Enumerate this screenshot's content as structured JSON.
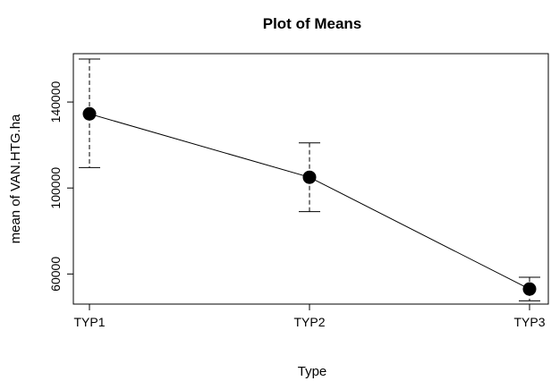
{
  "chart_data": {
    "type": "line",
    "title": "Plot of Means",
    "xlabel": "Type",
    "ylabel": "mean of VAN.HTG.ha",
    "categories": [
      "TYP1",
      "TYP2",
      "TYP3"
    ],
    "series": [
      {
        "values": [
          134500,
          105000,
          53000
        ],
        "error_upper": [
          160000,
          121000,
          58500
        ],
        "error_lower": [
          109500,
          89000,
          47500
        ]
      }
    ],
    "yticks": [
      60000,
      100000,
      140000
    ],
    "ytick_labels": [
      "60000",
      "100000",
      "140000"
    ],
    "ylim": [
      46000,
      162500
    ],
    "grid": false,
    "legend": "none",
    "colors": {
      "line": "#000000",
      "marker": "#000000",
      "error_bar": "#000000",
      "axis": "#000000",
      "background": "#ffffff"
    }
  }
}
